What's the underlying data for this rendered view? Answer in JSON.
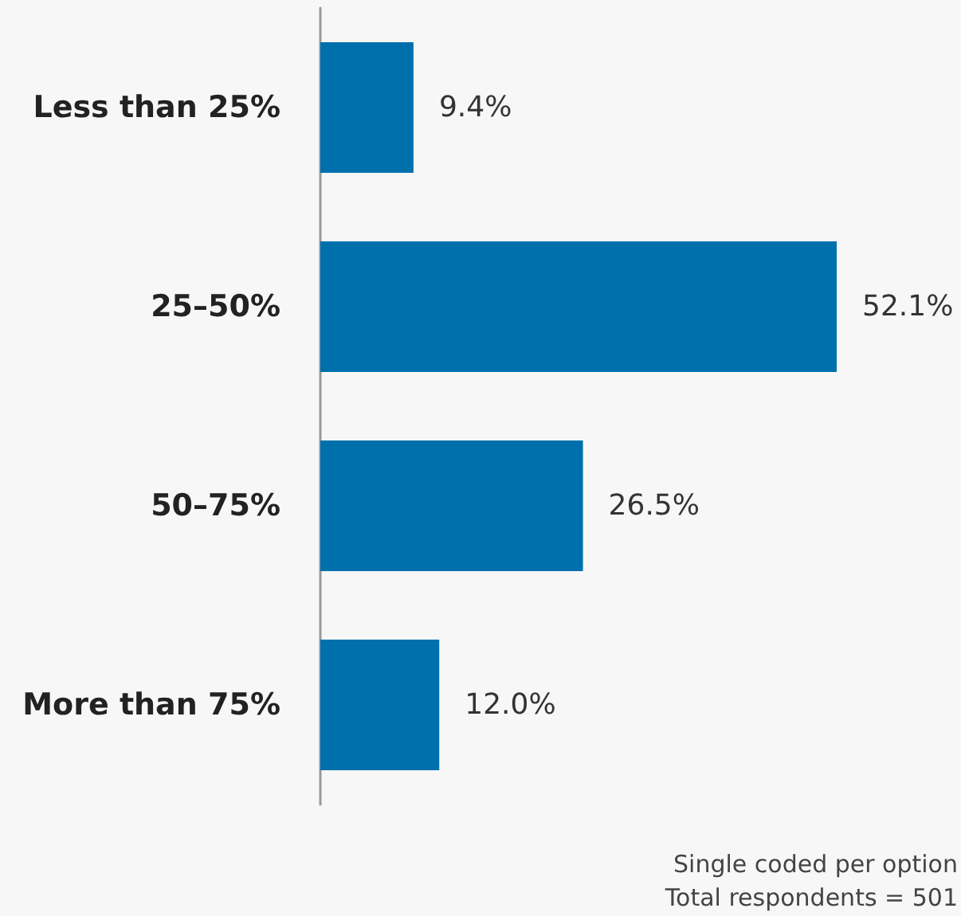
{
  "chart_data": {
    "type": "bar",
    "orientation": "horizontal",
    "categories": [
      "Less than 25%",
      "25–50%",
      "50–75%",
      "More than 75%"
    ],
    "values": [
      9.4,
      52.1,
      26.5,
      12.0
    ],
    "value_labels": [
      "9.4%",
      "52.1%",
      "26.5%",
      "12.0%"
    ],
    "color": "#0070ad",
    "annotations": [
      "Single coded per option",
      "Total respondents = 501"
    ]
  }
}
